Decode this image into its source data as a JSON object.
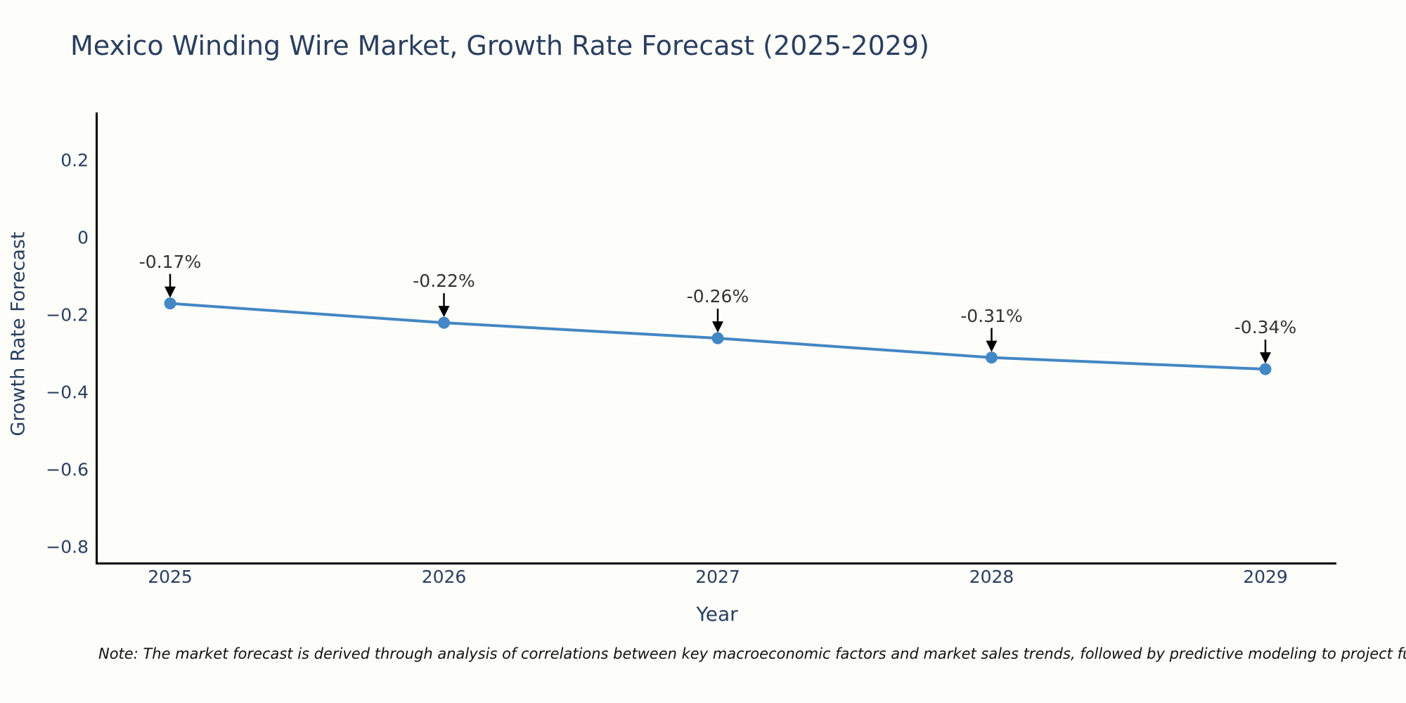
{
  "note": "Note: The market forecast is derived through analysis of correlations between key macroeconomic factors and market sales trends, followed by predictive modeling to project future sa",
  "colors": {
    "line": "#4387c4",
    "marker": "#4387c4",
    "axis_line": "#000000",
    "text": "#2a3f5f",
    "annotation_text": "#333333",
    "arrow": "#000000",
    "background": "#fdfdfa"
  },
  "chart_data": {
    "type": "line",
    "title": "Mexico Winding Wire Market, Growth Rate Forecast (2025-2029)",
    "x": [
      "2025",
      "2026",
      "2027",
      "2028",
      "2029"
    ],
    "series": [
      {
        "name": "Growth Rate Forecast",
        "values": [
          -0.17,
          -0.22,
          -0.26,
          -0.31,
          -0.34
        ]
      }
    ],
    "point_labels": [
      "-0.17%",
      "-0.22%",
      "-0.26%",
      "-0.31%",
      "-0.34%"
    ],
    "xlabel": "Year",
    "ylabel": "Growth Rate Forecast",
    "ytick_values": [
      0.2,
      0,
      -0.2,
      -0.4,
      -0.6,
      -0.8
    ],
    "ytick_labels": [
      "0.2",
      "0",
      "−0.2",
      "−0.4",
      "−0.6",
      "−0.8"
    ],
    "ylim": [
      -0.84,
      0.324
    ],
    "grid": false,
    "legend_position": "none",
    "markers": true,
    "annotation_arrows": true
  }
}
